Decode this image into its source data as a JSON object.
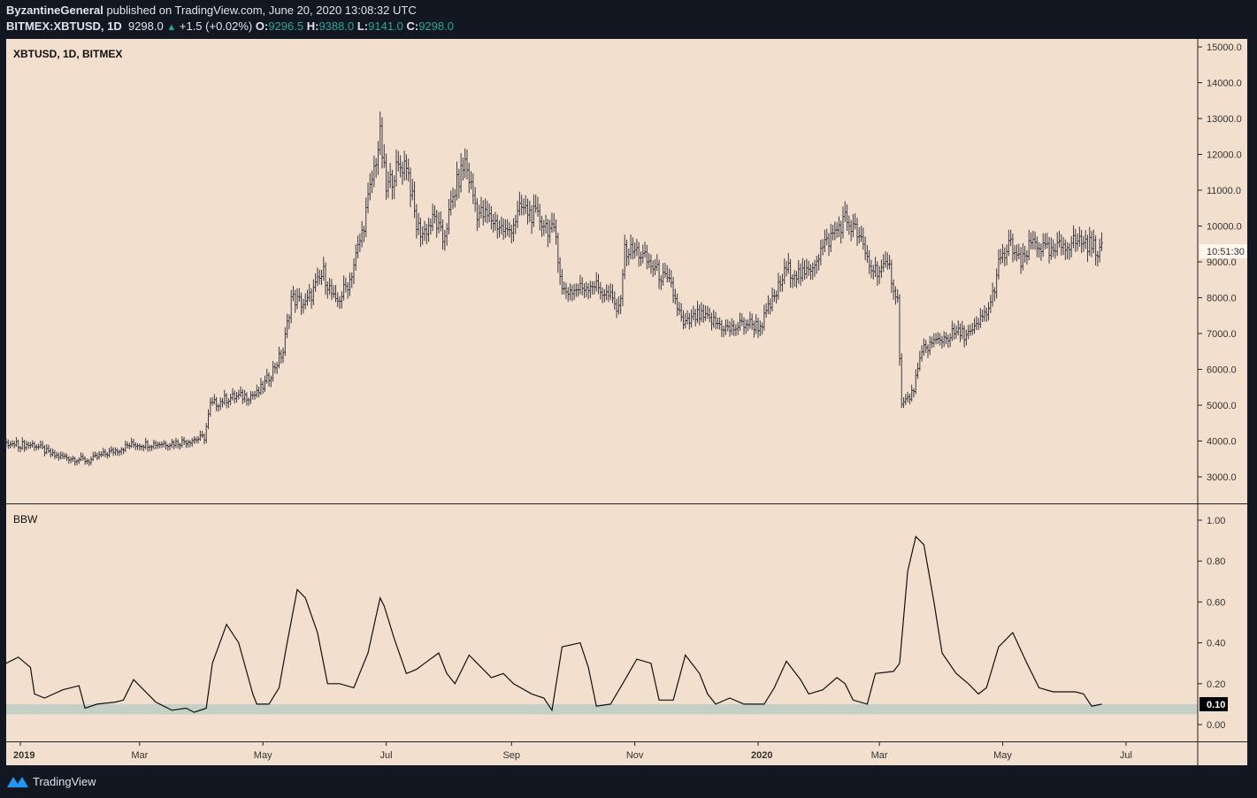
{
  "header": {
    "author": "ByzantineGeneral",
    "published": "published on TradingView.com, June 20, 2020 13:08:32 UTC",
    "symbol": "BITMEX:XBTUSD, 1D",
    "last": "9298.0",
    "change": "+1.5 (+0.02%)",
    "o_label": "O:",
    "o": "9296.5",
    "h_label": "H:",
    "h": "9388.0",
    "l_label": "L:",
    "l": "9141.0",
    "c_label": "C:",
    "c": "9298.0"
  },
  "footer": {
    "brand": "TradingView"
  },
  "colors": {
    "background": "#f2dfcd",
    "frame": "#131722",
    "bars": "#3a3a45",
    "band": "#c5cfc5",
    "accent": "#26a69a"
  },
  "chart_data": [
    {
      "type": "ohlc",
      "title": "XBTUSD, 1D, BITMEX",
      "x_unit": "days since 2019-01-01",
      "ylim": [
        2500,
        15200
      ],
      "yticks": [
        "15000.0",
        "14000.0",
        "13000.0",
        "12000.0",
        "11000.0",
        "10000.0",
        "9000.0",
        "8000.0",
        "7000.0",
        "6000.0",
        "5000.0",
        "4000.0",
        "3000.0"
      ],
      "countdown_label": "10:51:30",
      "close_path": [
        [
          -7,
          3900
        ],
        [
          7,
          3900
        ],
        [
          16,
          3600
        ],
        [
          34,
          3450
        ],
        [
          40,
          3600
        ],
        [
          55,
          3900
        ],
        [
          77,
          3950
        ],
        [
          91,
          4100
        ],
        [
          94,
          5000
        ],
        [
          103,
          5200
        ],
        [
          117,
          5300
        ],
        [
          121,
          5600
        ],
        [
          130,
          6500
        ],
        [
          134,
          8000
        ],
        [
          141,
          7800
        ],
        [
          150,
          8700
        ],
        [
          156,
          7800
        ],
        [
          163,
          8500
        ],
        [
          169,
          9800
        ],
        [
          173,
          11000
        ],
        [
          178,
          12500
        ],
        [
          181,
          11000
        ],
        [
          185,
          11500
        ],
        [
          191,
          11800
        ],
        [
          196,
          10000
        ],
        [
          199,
          9800
        ],
        [
          205,
          10200
        ],
        [
          209,
          9600
        ],
        [
          215,
          11000
        ],
        [
          220,
          11800
        ],
        [
          226,
          10400
        ],
        [
          233,
          10200
        ],
        [
          241,
          9800
        ],
        [
          248,
          10500
        ],
        [
          257,
          10200
        ],
        [
          265,
          9700
        ],
        [
          268,
          8200
        ],
        [
          274,
          8200
        ],
        [
          283,
          8400
        ],
        [
          292,
          8000
        ],
        [
          296,
          7600
        ],
        [
          299,
          9300
        ],
        [
          305,
          9300
        ],
        [
          314,
          8800
        ],
        [
          322,
          8300
        ],
        [
          328,
          7200
        ],
        [
          335,
          7500
        ],
        [
          344,
          7300
        ],
        [
          351,
          7100
        ],
        [
          359,
          7300
        ],
        [
          366,
          7200
        ],
        [
          373,
          8000
        ],
        [
          379,
          8800
        ],
        [
          388,
          8600
        ],
        [
          397,
          9400
        ],
        [
          408,
          10200
        ],
        [
          414,
          9800
        ],
        [
          421,
          8800
        ],
        [
          430,
          8800
        ],
        [
          434,
          7900
        ],
        [
          436,
          5000
        ],
        [
          441,
          5300
        ],
        [
          447,
          6600
        ],
        [
          454,
          6800
        ],
        [
          462,
          7000
        ],
        [
          471,
          7000
        ],
        [
          480,
          7800
        ],
        [
          484,
          8900
        ],
        [
          490,
          9500
        ],
        [
          495,
          8900
        ],
        [
          501,
          9600
        ],
        [
          510,
          9200
        ],
        [
          516,
          9500
        ],
        [
          525,
          9600
        ],
        [
          535,
          9298
        ]
      ]
    },
    {
      "type": "line",
      "title": "BBW",
      "x_unit": "days since 2019-01-01",
      "ylim": [
        -0.07,
        1.05
      ],
      "yticks": [
        "1.00",
        "0.80",
        "0.60",
        "0.40",
        "0.20",
        "0.00"
      ],
      "band": [
        0.05,
        0.1
      ],
      "current_label": "0.10",
      "points": [
        [
          -7,
          0.3
        ],
        [
          -1,
          0.33
        ],
        [
          5,
          0.28
        ],
        [
          7,
          0.15
        ],
        [
          12,
          0.13
        ],
        [
          21,
          0.17
        ],
        [
          29,
          0.19
        ],
        [
          32,
          0.08
        ],
        [
          38,
          0.1
        ],
        [
          47,
          0.11
        ],
        [
          51,
          0.12
        ],
        [
          56,
          0.22
        ],
        [
          60,
          0.18
        ],
        [
          67,
          0.11
        ],
        [
          75,
          0.07
        ],
        [
          82,
          0.08
        ],
        [
          86,
          0.06
        ],
        [
          92,
          0.08
        ],
        [
          95,
          0.3
        ],
        [
          102,
          0.49
        ],
        [
          108,
          0.4
        ],
        [
          115,
          0.15
        ],
        [
          117,
          0.1
        ],
        [
          123,
          0.1
        ],
        [
          128,
          0.18
        ],
        [
          132,
          0.4
        ],
        [
          137,
          0.66
        ],
        [
          141,
          0.62
        ],
        [
          147,
          0.45
        ],
        [
          152,
          0.2
        ],
        [
          158,
          0.2
        ],
        [
          165,
          0.18
        ],
        [
          172,
          0.35
        ],
        [
          178,
          0.62
        ],
        [
          180,
          0.58
        ],
        [
          185,
          0.42
        ],
        [
          191,
          0.25
        ],
        [
          196,
          0.27
        ],
        [
          200,
          0.3
        ],
        [
          207,
          0.35
        ],
        [
          211,
          0.25
        ],
        [
          215,
          0.2
        ],
        [
          222,
          0.34
        ],
        [
          228,
          0.28
        ],
        [
          233,
          0.23
        ],
        [
          239,
          0.25
        ],
        [
          244,
          0.2
        ],
        [
          253,
          0.15
        ],
        [
          259,
          0.13
        ],
        [
          263,
          0.07
        ],
        [
          268,
          0.38
        ],
        [
          277,
          0.4
        ],
        [
          281,
          0.28
        ],
        [
          285,
          0.09
        ],
        [
          292,
          0.1
        ],
        [
          298,
          0.2
        ],
        [
          305,
          0.32
        ],
        [
          312,
          0.3
        ],
        [
          316,
          0.12
        ],
        [
          323,
          0.12
        ],
        [
          329,
          0.34
        ],
        [
          336,
          0.25
        ],
        [
          340,
          0.15
        ],
        [
          344,
          0.1
        ],
        [
          351,
          0.13
        ],
        [
          358,
          0.1
        ],
        [
          368,
          0.1
        ],
        [
          373,
          0.18
        ],
        [
          379,
          0.31
        ],
        [
          386,
          0.22
        ],
        [
          390,
          0.15
        ],
        [
          397,
          0.17
        ],
        [
          404,
          0.23
        ],
        [
          408,
          0.2
        ],
        [
          412,
          0.12
        ],
        [
          419,
          0.1
        ],
        [
          423,
          0.25
        ],
        [
          432,
          0.26
        ],
        [
          435,
          0.3
        ],
        [
          439,
          0.75
        ],
        [
          443,
          0.92
        ],
        [
          447,
          0.88
        ],
        [
          452,
          0.6
        ],
        [
          456,
          0.35
        ],
        [
          463,
          0.25
        ],
        [
          469,
          0.2
        ],
        [
          474,
          0.15
        ],
        [
          478,
          0.18
        ],
        [
          484,
          0.38
        ],
        [
          491,
          0.45
        ],
        [
          498,
          0.3
        ],
        [
          504,
          0.18
        ],
        [
          511,
          0.16
        ],
        [
          522,
          0.16
        ],
        [
          526,
          0.15
        ],
        [
          530,
          0.09
        ],
        [
          535,
          0.1
        ]
      ]
    }
  ],
  "time_axis": {
    "ticks": [
      {
        "label": "2019",
        "day": 0,
        "bold": true
      },
      {
        "label": "Mar",
        "day": 59
      },
      {
        "label": "May",
        "day": 120
      },
      {
        "label": "Jul",
        "day": 181
      },
      {
        "label": "Sep",
        "day": 243
      },
      {
        "label": "Nov",
        "day": 304
      },
      {
        "label": "2020",
        "day": 365,
        "bold": true
      },
      {
        "label": "Mar",
        "day": 425
      },
      {
        "label": "May",
        "day": 486
      },
      {
        "label": "Jul",
        "day": 547
      }
    ]
  }
}
